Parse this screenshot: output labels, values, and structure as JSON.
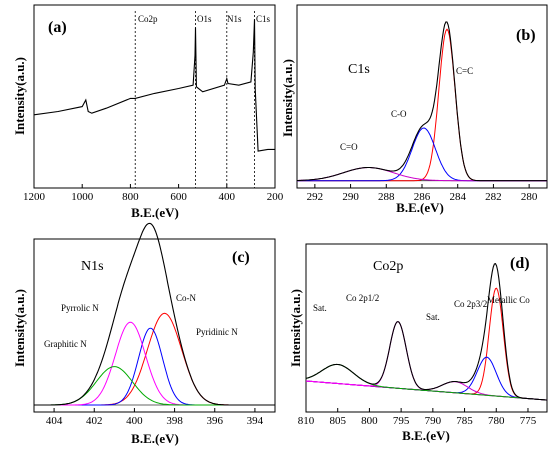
{
  "figure": {
    "panels": [
      {
        "id": "a",
        "letter": "(a)",
        "title": "",
        "xlabel": "B.E.(eV)",
        "ylabel": "Intensity(a.u.)",
        "xticks": [
          "1200",
          "1000",
          "800",
          "600",
          "400",
          "200"
        ],
        "markers": [
          "Co2p",
          "O1s",
          "N1s",
          "C1s"
        ]
      },
      {
        "id": "b",
        "letter": "(b)",
        "title": "C1s",
        "xlabel": "B.E.(eV)",
        "ylabel": "Intensity(a.u.)",
        "xticks": [
          "292",
          "290",
          "288",
          "286",
          "284",
          "282",
          "280"
        ],
        "annotations": [
          "C=C",
          "C-O",
          "C=O"
        ]
      },
      {
        "id": "c",
        "letter": "(c)",
        "title": "N1s",
        "xlabel": "B.E.(eV)",
        "ylabel": "Intensity(a.u.)",
        "xticks": [
          "404",
          "402",
          "400",
          "398",
          "396",
          "394"
        ],
        "annotations": [
          "Co-N",
          "Pyrrolic N",
          "Pyridinic N",
          "Graphitic N"
        ]
      },
      {
        "id": "d",
        "letter": "(d)",
        "title": "Co2p",
        "xlabel": "B.E.(eV)",
        "ylabel": "Intensity(a.u.)",
        "xticks": [
          "810",
          "805",
          "800",
          "795",
          "790",
          "785",
          "780",
          "775"
        ],
        "annotations": [
          "Sat.",
          "Co 2p1/2",
          "Sat.",
          "Co 2p3/2",
          "Metallic Co"
        ]
      }
    ]
  },
  "chart_data": [
    {
      "type": "line",
      "panel": "(a)",
      "xlabel": "B.E.(eV)",
      "ylabel": "Intensity(a.u.)",
      "xlim": [
        1200,
        200
      ],
      "reversed_x": true,
      "x": [
        1200,
        1100,
        1000,
        985,
        975,
        960,
        900,
        800,
        780,
        700,
        600,
        540,
        532,
        530,
        526,
        500,
        410,
        400,
        395,
        350,
        300,
        290,
        285,
        282,
        270,
        230,
        200
      ],
      "series": [
        {
          "values": [
            0.42,
            0.44,
            0.47,
            0.51,
            0.44,
            0.43,
            0.46,
            0.52,
            0.52,
            0.55,
            0.58,
            0.6,
            0.78,
            0.95,
            0.59,
            0.56,
            0.6,
            0.64,
            0.61,
            0.6,
            0.62,
            0.8,
            1.0,
            0.58,
            0.2,
            0.21,
            0.21
          ]
        }
      ],
      "markers_x": [
        780,
        530,
        400,
        285
      ]
    },
    {
      "type": "line",
      "panel": "(b)",
      "xlabel": "B.E.(eV)",
      "ylabel": "Intensity(a.u.)",
      "xlim": [
        293,
        279
      ],
      "reversed_x": true,
      "series": [
        {
          "name": "C=C",
          "color": "#ff0000",
          "peak": {
            "center": 284.6,
            "height": 0.92,
            "width": 0.45
          }
        },
        {
          "name": "C-O",
          "color": "#0000ff",
          "peak": {
            "center": 285.9,
            "height": 0.32,
            "width": 0.65
          }
        },
        {
          "name": "C=O",
          "color": "#cc00cc",
          "peak": {
            "center": 289.0,
            "height": 0.08,
            "width": 1.4
          }
        },
        {
          "name": "Envelope",
          "color": "#000000",
          "type": "sum",
          "background": 0.02
        }
      ]
    },
    {
      "type": "line",
      "panel": "(c)",
      "xlabel": "B.E.(eV)",
      "ylabel": "Intensity(a.u.)",
      "xlim": [
        405,
        393
      ],
      "reversed_x": true,
      "series": [
        {
          "name": "Pyridinic N",
          "color": "#ff0000",
          "peak": {
            "center": 398.5,
            "height": 0.62,
            "width": 0.85
          }
        },
        {
          "name": "Co-N",
          "color": "#0000ff",
          "peak": {
            "center": 399.2,
            "height": 0.52,
            "width": 0.6
          }
        },
        {
          "name": "Pyrrolic N",
          "color": "#ff00ff",
          "peak": {
            "center": 400.2,
            "height": 0.56,
            "width": 0.75
          }
        },
        {
          "name": "Graphitic N",
          "color": "#00aa00",
          "peak": {
            "center": 401.0,
            "height": 0.26,
            "width": 0.9
          }
        },
        {
          "name": "Envelope",
          "color": "#000000",
          "type": "sum",
          "background": 0.02
        }
      ]
    },
    {
      "type": "line",
      "panel": "(d)",
      "xlabel": "B.E.(eV)",
      "ylabel": "Intensity(a.u.)",
      "xlim": [
        810,
        772
      ],
      "reversed_x": true,
      "series": [
        {
          "name": "Metallic Co",
          "color": "#ff0000",
          "peak": {
            "center": 780.0,
            "height": 0.68,
            "width": 1.1
          }
        },
        {
          "name": "Co 2p3/2",
          "color": "#0000ff",
          "peak": {
            "center": 781.5,
            "height": 0.24,
            "width": 1.5
          }
        },
        {
          "name": "Sat.",
          "color": "#cc00cc",
          "peak": {
            "center": 786.5,
            "height": 0.07,
            "width": 2.0
          }
        },
        {
          "name": "Co 2p1/2",
          "color": "#ff00ff",
          "peak": {
            "center": 795.5,
            "height": 0.42,
            "width": 1.3
          }
        },
        {
          "name": "Sat.",
          "color": "#00aa00",
          "peak": {
            "center": 805.0,
            "height": 0.12,
            "width": 2.5
          }
        },
        {
          "name": "Envelope",
          "color": "#000000",
          "type": "sum",
          "background_slope": true
        }
      ]
    }
  ]
}
